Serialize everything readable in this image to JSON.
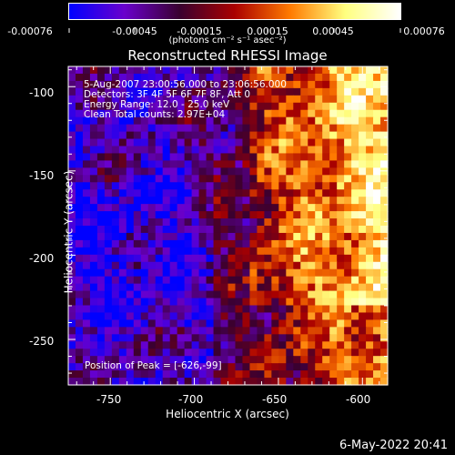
{
  "colorbar": {
    "tick_labels": [
      "-0.00076",
      "-0.00045",
      "-0.00015",
      "0.00015",
      "0.00045",
      "0.00076"
    ],
    "units_label": "(photons cm⁻² s⁻¹ asec⁻²)",
    "colors": [
      "#0000ff",
      "#6a00cc",
      "#3a0030",
      "#aa0000",
      "#ff7a00",
      "#ffff80",
      "#ffffff"
    ]
  },
  "chart_data": {
    "type": "heatmap",
    "title": "Reconstructed RHESSI Image",
    "xlabel": "Heliocentric X (arcsec)",
    "ylabel": "Heliocentric Y (arcsec)",
    "xlim": [
      -775,
      -585
    ],
    "ylim": [
      -277,
      -88
    ],
    "x_ticks": [
      "-750",
      "-700",
      "-650",
      "-600"
    ],
    "x_tick_values": [
      -750,
      -700,
      -650,
      -600
    ],
    "y_ticks": [
      "-100",
      "-150",
      "-200",
      "-250"
    ],
    "y_tick_values": [
      -100,
      -150,
      -200,
      -250
    ],
    "value_range": [
      -0.00076,
      0.00076
    ],
    "peak": {
      "x": -626,
      "y": -99
    },
    "annotations": [
      "5-Aug-2007 23:00:56.000 to 23:06:56.000",
      "Detectors: 3F 4F 5F 6F 7F 8F, Att 0",
      "Energy Range: 12.0 - 25.0 keV",
      "Clean     Total counts: 2.97E+04",
      "Position of Peak = [-626,-99]"
    ]
  },
  "footer": {
    "date": "6-May-2022 20:41"
  }
}
